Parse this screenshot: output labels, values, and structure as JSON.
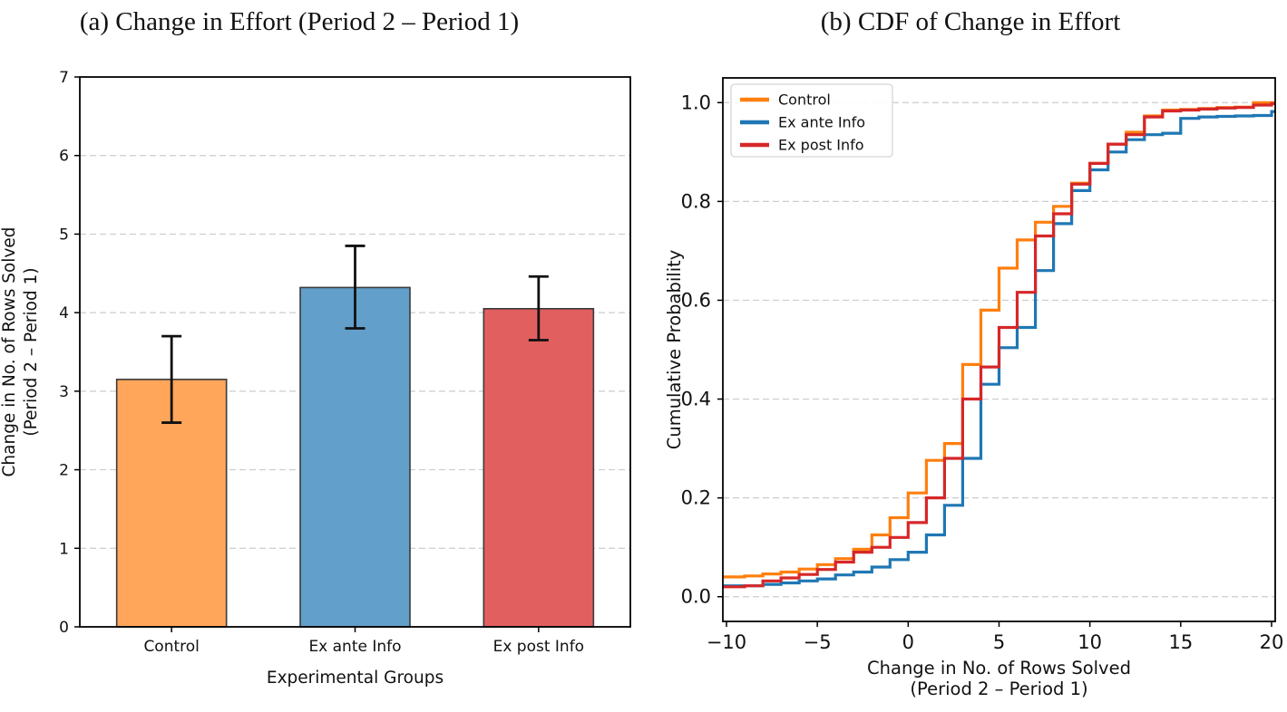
{
  "panels": {
    "a": {
      "title": "(a) Change in Effort (Period 2 – Period 1)"
    },
    "b": {
      "title": "(b) CDF of Change in Effort"
    }
  },
  "colors": {
    "background": "#ffffff",
    "grid": "#cccccc",
    "spine": "#000000",
    "errorbar": "#111111",
    "bar_edge": "#3a3a3a",
    "legend_border": "#d5d5d5"
  },
  "chart_data": [
    {
      "type": "bar",
      "title": "(a) Change in Effort (Period 2 – Period 1)",
      "categories": [
        "Control",
        "Ex ante Info",
        "Ex post Info"
      ],
      "values": [
        3.15,
        4.32,
        4.05
      ],
      "error_low": [
        2.6,
        3.8,
        3.65
      ],
      "error_high": [
        3.7,
        4.85,
        4.46
      ],
      "bar_colors": [
        "#ffa65a",
        "#629fca",
        "#e25f60"
      ],
      "xlabel": "Experimental Groups",
      "ylabel_line1": "Change in No. of Rows Solved",
      "ylabel_line2": "(Period 2 – Period 1)",
      "ylim": [
        0,
        7
      ],
      "yticks": [
        0,
        1,
        2,
        3,
        4,
        5,
        6,
        7
      ],
      "ytick_labels": [
        "0",
        "1",
        "2",
        "3",
        "4",
        "5",
        "6",
        "7"
      ],
      "grid": "horizontal dashed"
    },
    {
      "type": "line",
      "subtype": "step-cdf",
      "title": "(b) CDF of Change in Effort",
      "xlabel_line1": "Change in No. of Rows Solved",
      "xlabel_line2": "(Period 2 – Period 1)",
      "ylabel": "Cumulative Probability",
      "xlim": [
        -10.2,
        20.2
      ],
      "ylim": [
        -0.05,
        1.05
      ],
      "xticks": [
        -10,
        -5,
        0,
        5,
        10,
        15,
        20
      ],
      "xtick_labels": [
        "−10",
        "−5",
        "0",
        "5",
        "10",
        "15",
        "20"
      ],
      "yticks": [
        0.0,
        0.2,
        0.4,
        0.6,
        0.8,
        1.0
      ],
      "ytick_labels": [
        "0.0",
        "0.2",
        "0.4",
        "0.6",
        "0.8",
        "1.0"
      ],
      "grid": "horizontal dashed",
      "legend_position": "upper left",
      "x": [
        -10,
        -9,
        -8,
        -7,
        -6,
        -5,
        -4,
        -3,
        -2,
        -1,
        0,
        1,
        2,
        3,
        4,
        5,
        6,
        7,
        8,
        9,
        10,
        11,
        12,
        13,
        14,
        15,
        16,
        17,
        18,
        19,
        20
      ],
      "series": [
        {
          "name": "Control",
          "color": "#ff7f0e",
          "values": [
            0.04,
            0.042,
            0.046,
            0.05,
            0.056,
            0.065,
            0.077,
            0.096,
            0.125,
            0.16,
            0.21,
            0.276,
            0.31,
            0.47,
            0.58,
            0.665,
            0.722,
            0.758,
            0.79,
            0.837,
            0.877,
            0.916,
            0.94,
            0.973,
            0.985,
            0.986,
            0.988,
            0.99,
            0.991,
            1.0,
            1.0
          ]
        },
        {
          "name": "Ex ante Info",
          "color": "#1f77b4",
          "values": [
            0.022,
            0.022,
            0.025,
            0.028,
            0.032,
            0.036,
            0.044,
            0.05,
            0.06,
            0.075,
            0.09,
            0.125,
            0.185,
            0.28,
            0.43,
            0.504,
            0.545,
            0.66,
            0.755,
            0.822,
            0.864,
            0.9,
            0.925,
            0.935,
            0.938,
            0.968,
            0.971,
            0.972,
            0.973,
            0.974,
            0.982
          ]
        },
        {
          "name": "Ex post Info",
          "color": "#d62728",
          "values": [
            0.02,
            0.022,
            0.032,
            0.038,
            0.045,
            0.055,
            0.07,
            0.09,
            0.1,
            0.12,
            0.15,
            0.2,
            0.28,
            0.4,
            0.465,
            0.545,
            0.616,
            0.73,
            0.775,
            0.835,
            0.877,
            0.916,
            0.935,
            0.971,
            0.983,
            0.985,
            0.987,
            0.989,
            0.99,
            0.995,
            0.998
          ]
        }
      ]
    }
  ]
}
